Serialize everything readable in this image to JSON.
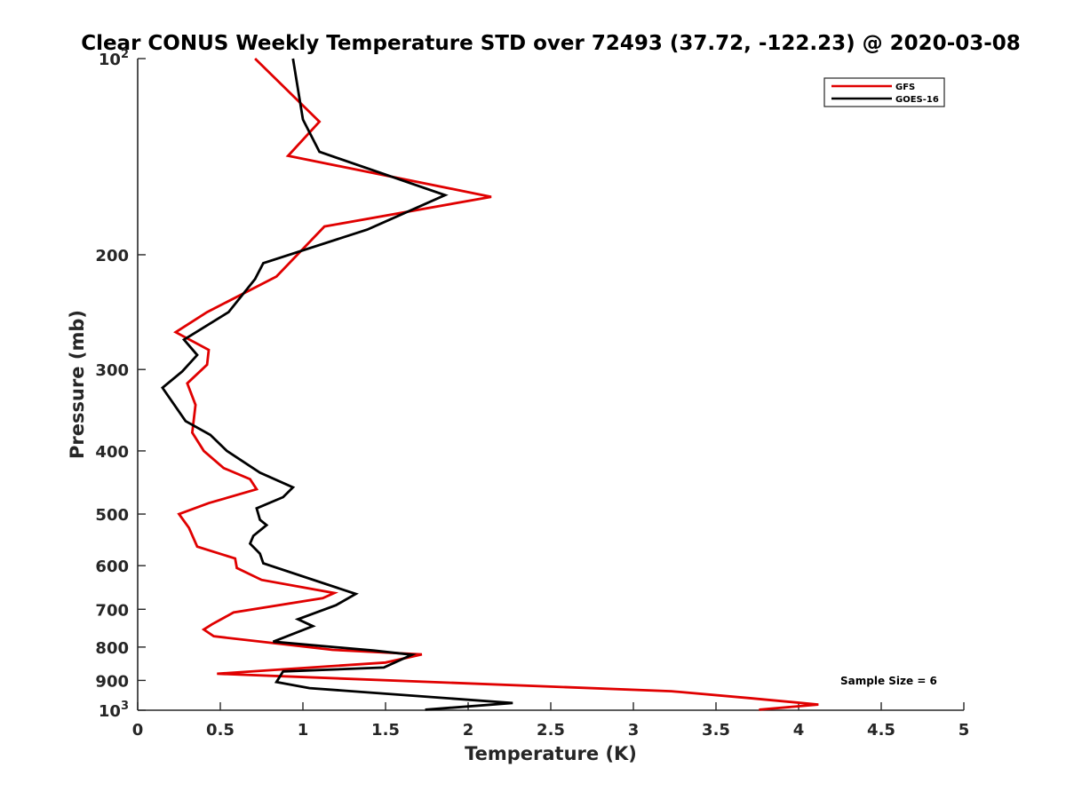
{
  "chart_data": {
    "type": "line",
    "title": "Clear CONUS Weekly Temperature STD over 72493 (37.72, -122.23) @ 2020-03-08",
    "xlabel": "Temperature (K)",
    "ylabel": "Pressure (mb)",
    "xlim": [
      0,
      5
    ],
    "ylim": [
      100,
      1000
    ],
    "y_scale": "log",
    "y_reversed": true,
    "x_ticks": [
      "0",
      "0.5",
      "1",
      "1.5",
      "2",
      "2.5",
      "3",
      "3.5",
      "4",
      "4.5",
      "5"
    ],
    "y_ticks": [
      {
        "value": 100,
        "label": "10",
        "sup": "2"
      },
      {
        "value": 200,
        "label": "200",
        "sup": ""
      },
      {
        "value": 300,
        "label": "300",
        "sup": ""
      },
      {
        "value": 400,
        "label": "400",
        "sup": ""
      },
      {
        "value": 500,
        "label": "500",
        "sup": ""
      },
      {
        "value": 600,
        "label": "600",
        "sup": ""
      },
      {
        "value": 700,
        "label": "700",
        "sup": ""
      },
      {
        "value": 800,
        "label": "800",
        "sup": ""
      },
      {
        "value": 900,
        "label": "900",
        "sup": ""
      },
      {
        "value": 1000,
        "label": "10",
        "sup": "3"
      }
    ],
    "legend_position": "top-right",
    "grid": false,
    "annotation": "Sample Size = 6",
    "series": [
      {
        "name": "GFS",
        "color": "#e00000",
        "points": [
          [
            0.71,
            100
          ],
          [
            1.1,
            125
          ],
          [
            0.91,
            141
          ],
          [
            2.14,
            163
          ],
          [
            1.13,
            181
          ],
          [
            0.84,
            216
          ],
          [
            0.42,
            245
          ],
          [
            0.23,
            263
          ],
          [
            0.43,
            280
          ],
          [
            0.42,
            295
          ],
          [
            0.3,
            315
          ],
          [
            0.35,
            340
          ],
          [
            0.33,
            375
          ],
          [
            0.4,
            400
          ],
          [
            0.52,
            425
          ],
          [
            0.68,
            442
          ],
          [
            0.72,
            458
          ],
          [
            0.43,
            481
          ],
          [
            0.25,
            500
          ],
          [
            0.31,
            525
          ],
          [
            0.36,
            561
          ],
          [
            0.59,
            585
          ],
          [
            0.6,
            605
          ],
          [
            0.75,
            631
          ],
          [
            1.19,
            661
          ],
          [
            1.12,
            673
          ],
          [
            0.58,
            708
          ],
          [
            0.45,
            738
          ],
          [
            0.4,
            752
          ],
          [
            0.46,
            770
          ],
          [
            1.18,
            808
          ],
          [
            1.72,
            821
          ],
          [
            1.5,
            845
          ],
          [
            0.48,
            879
          ],
          [
            3.23,
            935
          ],
          [
            3.7,
            958
          ],
          [
            4.12,
            980
          ],
          [
            3.76,
            998
          ]
        ]
      },
      {
        "name": "GOES-16",
        "color": "#000000",
        "points": [
          [
            0.94,
            100
          ],
          [
            1.0,
            124
          ],
          [
            1.1,
            139
          ],
          [
            1.86,
            162
          ],
          [
            1.39,
            183
          ],
          [
            0.76,
            206
          ],
          [
            0.71,
            218
          ],
          [
            0.55,
            245
          ],
          [
            0.28,
            270
          ],
          [
            0.36,
            285
          ],
          [
            0.27,
            302
          ],
          [
            0.15,
            320
          ],
          [
            0.29,
            360
          ],
          [
            0.44,
            378
          ],
          [
            0.54,
            400
          ],
          [
            0.74,
            432
          ],
          [
            0.94,
            455
          ],
          [
            0.88,
            471
          ],
          [
            0.72,
            490
          ],
          [
            0.74,
            510
          ],
          [
            0.78,
            520
          ],
          [
            0.7,
            540
          ],
          [
            0.68,
            555
          ],
          [
            0.74,
            575
          ],
          [
            0.76,
            595
          ],
          [
            1.32,
            663
          ],
          [
            1.2,
            690
          ],
          [
            0.97,
            725
          ],
          [
            1.06,
            743
          ],
          [
            0.82,
            785
          ],
          [
            1.43,
            810
          ],
          [
            1.66,
            822
          ],
          [
            1.49,
            860
          ],
          [
            0.88,
            872
          ],
          [
            0.84,
            905
          ],
          [
            1.04,
            925
          ],
          [
            2.27,
            975
          ],
          [
            1.74,
            998
          ]
        ]
      }
    ]
  }
}
